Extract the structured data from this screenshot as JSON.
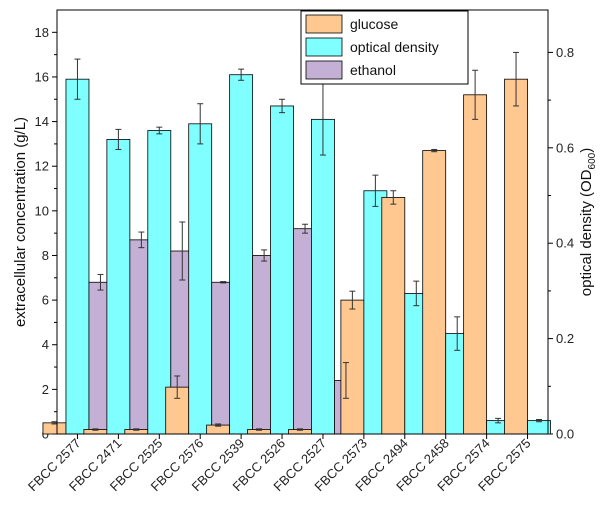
{
  "chart_data": {
    "type": "bar",
    "categories": [
      "FBCC 2577",
      "FBCC 2471",
      "FBCC 2525",
      "FBCC 2576",
      "FBCC 2539",
      "FBCC 2526",
      "FBCC 2527",
      "FBCC 2573",
      "FBCC 2494",
      "FBCC 2458",
      "FBCC 2574",
      "FBCC 2575"
    ],
    "ylabel": "extracellular concentration (g/L)",
    "y2label_main": "optical density (OD",
    "y2label_sub": "600",
    "y2label_close": ")",
    "ylim": [
      0,
      19
    ],
    "y2lim": [
      0,
      0.8889
    ],
    "yticks": [
      0,
      2,
      4,
      6,
      8,
      10,
      12,
      14,
      16,
      18
    ],
    "y2ticks": [
      0.0,
      0.2,
      0.4,
      0.6,
      0.8
    ],
    "y2tick_labels": [
      "0.0",
      "0.2",
      "0.4",
      "0.6",
      "0.8"
    ],
    "legend_position": "top-center",
    "series": [
      {
        "name": "glucose",
        "axis": "left",
        "color": "#FFC891",
        "values": [
          0.5,
          0.2,
          0.2,
          2.1,
          0.4,
          0.2,
          0.2,
          6.0,
          10.6,
          12.7,
          15.2,
          15.9
        ],
        "errors": [
          0.05,
          0.03,
          0.03,
          0.5,
          0.05,
          0.03,
          0.03,
          0.4,
          0.3,
          0.05,
          1.1,
          1.2
        ]
      },
      {
        "name": "optical density",
        "axis": "right",
        "color": "#7FFFFF",
        "values": [
          null,
          null,
          null,
          null,
          null,
          null,
          null,
          null,
          null,
          null,
          null,
          null
        ],
        "values_left_scale": [
          15.9,
          13.2,
          13.6,
          13.9,
          16.1,
          14.7,
          14.1,
          10.9,
          6.3,
          4.5,
          0.6,
          0.6
        ],
        "errors_left_scale": [
          0.9,
          0.45,
          0.15,
          0.9,
          0.25,
          0.3,
          1.6,
          0.7,
          0.55,
          0.75,
          0.1,
          0.05
        ]
      },
      {
        "name": "ethanol",
        "axis": "left",
        "color": "#C4B0D5",
        "values": [
          6.8,
          8.7,
          8.2,
          6.8,
          8.0,
          9.2,
          2.4,
          null,
          null,
          null,
          null,
          null
        ],
        "errors": [
          0.35,
          0.35,
          1.3,
          0.03,
          0.25,
          0.2,
          0.8,
          null,
          null,
          null,
          null,
          null
        ]
      }
    ]
  }
}
